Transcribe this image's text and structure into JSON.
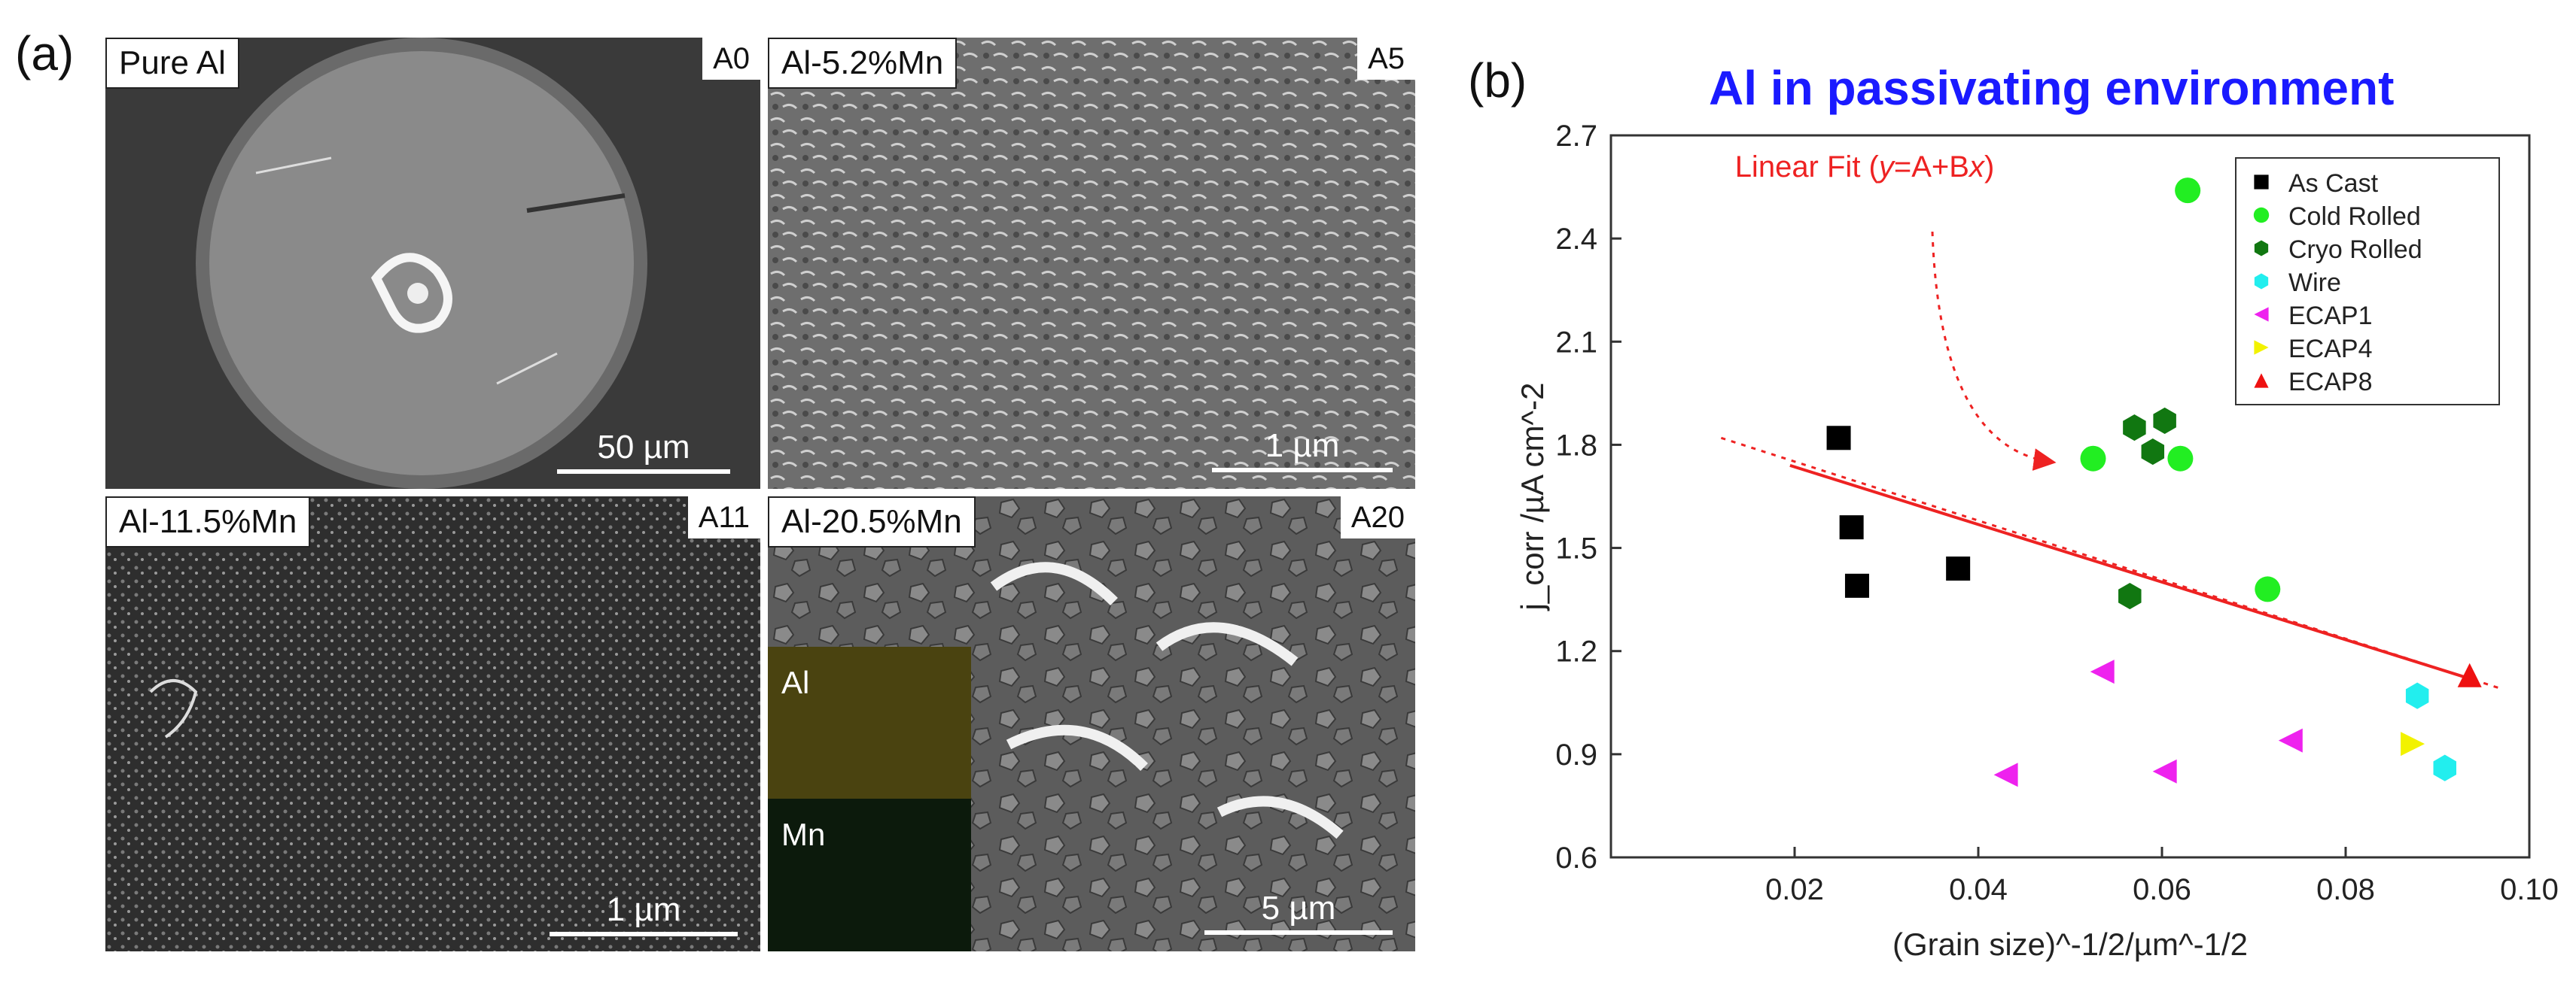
{
  "figure": {
    "panel_a_letter": "(a)",
    "panel_b_letter": "(b)"
  },
  "panel_a": {
    "images": [
      {
        "label": "Pure Al",
        "code": "A0",
        "scale": "50 µm"
      },
      {
        "label": "Al-5.2%Mn",
        "code": "A5",
        "scale": "1 µm"
      },
      {
        "label": "Al-11.5%Mn",
        "code": "A11",
        "scale": "1 µm"
      },
      {
        "label": "Al-20.5%Mn",
        "code": "A20",
        "scale": "5 µm",
        "inset_top": "Al",
        "inset_bottom": "Mn"
      }
    ]
  },
  "chart_data": {
    "type": "scatter",
    "title": "Al in passivating environment",
    "xlabel": "(Grain size)^-1/2/µm^-1/2",
    "ylabel": "j_corr /µA cm^-2",
    "xlim": [
      0.0,
      0.1
    ],
    "ylim": [
      0.6,
      2.7
    ],
    "xticks": [
      "0.02",
      "0.04",
      "0.06",
      "0.08",
      "0.10"
    ],
    "yticks": [
      "0.6",
      "0.9",
      "1.2",
      "1.5",
      "1.8",
      "2.1",
      "2.4",
      "2.7"
    ],
    "legend_position": "top-right",
    "series": [
      {
        "name": "As Cast",
        "color": "#000000",
        "marker": "square",
        "points": [
          [
            0.0248,
            1.82
          ],
          [
            0.0262,
            1.56
          ],
          [
            0.0268,
            1.39
          ],
          [
            0.0378,
            1.44
          ]
        ]
      },
      {
        "name": "Cold Rolled",
        "color": "#22ee22",
        "marker": "circle",
        "points": [
          [
            0.0525,
            1.76
          ],
          [
            0.062,
            1.76
          ],
          [
            0.0628,
            2.54
          ],
          [
            0.0715,
            1.38
          ]
        ]
      },
      {
        "name": "Cryo Rolled",
        "color": "#117711",
        "marker": "hexagon",
        "points": [
          [
            0.0565,
            1.36
          ],
          [
            0.057,
            1.85
          ],
          [
            0.059,
            1.78
          ],
          [
            0.0603,
            1.87
          ]
        ]
      },
      {
        "name": "Wire",
        "color": "#22eeee",
        "marker": "hexagon",
        "points": [
          [
            0.0878,
            1.07
          ],
          [
            0.0908,
            0.86
          ]
        ]
      },
      {
        "name": "ECAP1",
        "color": "#ee22ee",
        "marker": "triangle-left",
        "points": [
          [
            0.043,
            0.84
          ],
          [
            0.0535,
            1.14
          ],
          [
            0.0603,
            0.85
          ],
          [
            0.074,
            0.94
          ]
        ]
      },
      {
        "name": "ECAP4",
        "color": "#f2f200",
        "marker": "triangle-right",
        "points": [
          [
            0.0873,
            0.93
          ]
        ]
      },
      {
        "name": "ECAP8",
        "color": "#ee1111",
        "marker": "triangle-up",
        "points": [
          [
            0.0935,
            1.13
          ]
        ]
      }
    ],
    "fit": {
      "label_prefix": "Linear Fit (",
      "label_y": "y",
      "label_mid": "=A+B",
      "label_x": "x",
      "label_suffix": ")",
      "color": "#ee2222",
      "solid_from": [
        0.0195,
        1.74
      ],
      "solid_to": [
        0.0935,
        1.12
      ],
      "dotted_from": [
        0.012,
        1.82
      ],
      "dotted_to": [
        0.097,
        1.09
      ],
      "arrow_from": [
        0.035,
        2.42
      ],
      "arrow_to": [
        0.048,
        1.75
      ]
    }
  }
}
